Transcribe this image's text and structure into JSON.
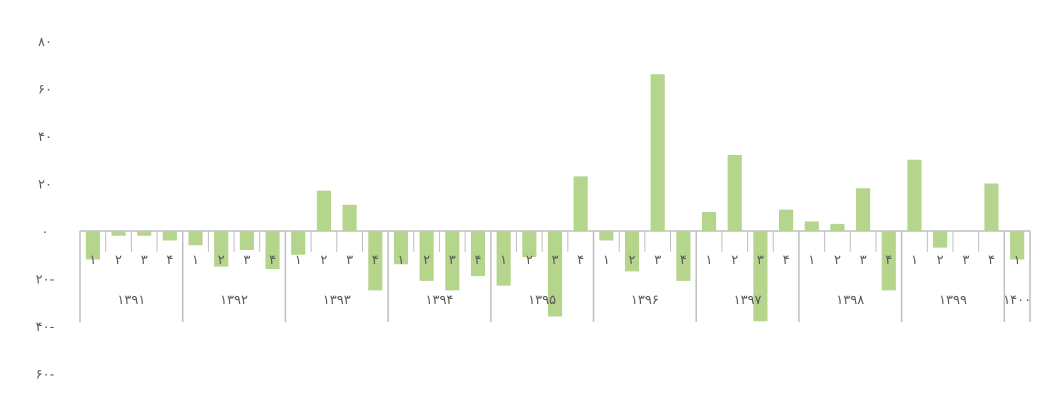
{
  "chart_data": {
    "type": "bar",
    "title": "",
    "xlabel": "",
    "ylabel": "",
    "ylim": [
      -60,
      80
    ],
    "yticks": [
      80,
      60,
      40,
      20,
      0,
      -20,
      -40,
      -60
    ],
    "ytick_labels": [
      "۸۰",
      "۶۰",
      "۴۰",
      "۲۰",
      "۰",
      "۲۰-",
      "۴۰-",
      "۶۰-"
    ],
    "bar_color": "#b5d48c",
    "grid": false,
    "years": [
      {
        "label": "۱۳۹۱",
        "quarters": [
          "۱",
          "۲",
          "۳",
          "۴"
        ],
        "values": [
          -12,
          -2,
          -2,
          -4
        ]
      },
      {
        "label": "۱۳۹۲",
        "quarters": [
          "۱",
          "۲",
          "۳",
          "۴"
        ],
        "values": [
          -6,
          -15,
          -8,
          -16
        ]
      },
      {
        "label": "۱۳۹۳",
        "quarters": [
          "۱",
          "۲",
          "۳",
          "۴"
        ],
        "values": [
          -10,
          17,
          11,
          -25
        ]
      },
      {
        "label": "۱۳۹۴",
        "quarters": [
          "۱",
          "۲",
          "۳",
          "۴"
        ],
        "values": [
          -14,
          -21,
          -25,
          -19
        ]
      },
      {
        "label": "۱۳۹۵",
        "quarters": [
          "۱",
          "۲",
          "۳",
          "۴"
        ],
        "values": [
          -23,
          -11,
          -36,
          23
        ]
      },
      {
        "label": "۱۳۹۶",
        "quarters": [
          "۱",
          "۲",
          "۳",
          "۴"
        ],
        "values": [
          -4,
          -17,
          66,
          -21
        ]
      },
      {
        "label": "۱۳۹۷",
        "quarters": [
          "۱",
          "۲",
          "۳",
          "۴"
        ],
        "values": [
          8,
          32,
          -38,
          9
        ]
      },
      {
        "label": "۱۳۹۸",
        "quarters": [
          "۱",
          "۲",
          "۳",
          "۴"
        ],
        "values": [
          4,
          3,
          18,
          -25
        ]
      },
      {
        "label": "۱۳۹۹",
        "quarters": [
          "۱",
          "۲",
          "۳",
          "۴"
        ],
        "values": [
          30,
          -7,
          0,
          20
        ]
      },
      {
        "label": "۱۴۰۰",
        "quarters": [
          "۱"
        ],
        "values": [
          -12
        ]
      }
    ]
  }
}
